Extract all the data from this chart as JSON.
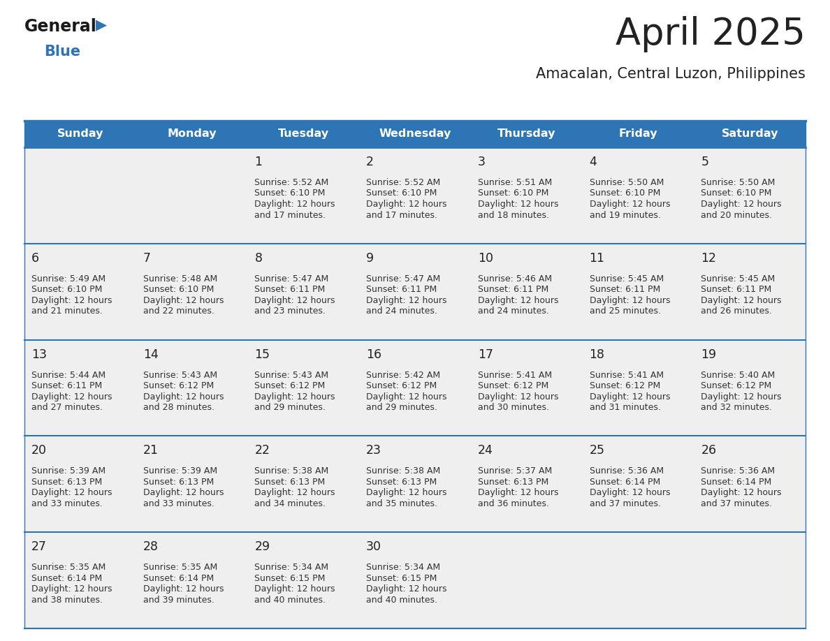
{
  "title": "April 2025",
  "subtitle": "Amacalan, Central Luzon, Philippines",
  "days_of_week": [
    "Sunday",
    "Monday",
    "Tuesday",
    "Wednesday",
    "Thursday",
    "Friday",
    "Saturday"
  ],
  "header_bg": "#2e75b6",
  "header_text": "#ffffff",
  "cell_bg": "#efefef",
  "cell_bg_empty": "#efefef",
  "border_color": "#2e75b6",
  "row_line_color": "#2e75b6",
  "title_color": "#222222",
  "subtitle_color": "#222222",
  "text_color": "#333333",
  "day_num_color": "#222222",
  "logo_general_color": "#1a1a1a",
  "logo_blue_color": "#2e75b6",
  "calendar_data": [
    [
      null,
      null,
      {
        "day": 1,
        "sunrise": "5:52 AM",
        "sunset": "6:10 PM",
        "daylight": "12 hours and 17 minutes."
      },
      {
        "day": 2,
        "sunrise": "5:52 AM",
        "sunset": "6:10 PM",
        "daylight": "12 hours and 17 minutes."
      },
      {
        "day": 3,
        "sunrise": "5:51 AM",
        "sunset": "6:10 PM",
        "daylight": "12 hours and 18 minutes."
      },
      {
        "day": 4,
        "sunrise": "5:50 AM",
        "sunset": "6:10 PM",
        "daylight": "12 hours and 19 minutes."
      },
      {
        "day": 5,
        "sunrise": "5:50 AM",
        "sunset": "6:10 PM",
        "daylight": "12 hours and 20 minutes."
      }
    ],
    [
      {
        "day": 6,
        "sunrise": "5:49 AM",
        "sunset": "6:10 PM",
        "daylight": "12 hours and 21 minutes."
      },
      {
        "day": 7,
        "sunrise": "5:48 AM",
        "sunset": "6:10 PM",
        "daylight": "12 hours and 22 minutes."
      },
      {
        "day": 8,
        "sunrise": "5:47 AM",
        "sunset": "6:11 PM",
        "daylight": "12 hours and 23 minutes."
      },
      {
        "day": 9,
        "sunrise": "5:47 AM",
        "sunset": "6:11 PM",
        "daylight": "12 hours and 24 minutes."
      },
      {
        "day": 10,
        "sunrise": "5:46 AM",
        "sunset": "6:11 PM",
        "daylight": "12 hours and 24 minutes."
      },
      {
        "day": 11,
        "sunrise": "5:45 AM",
        "sunset": "6:11 PM",
        "daylight": "12 hours and 25 minutes."
      },
      {
        "day": 12,
        "sunrise": "5:45 AM",
        "sunset": "6:11 PM",
        "daylight": "12 hours and 26 minutes."
      }
    ],
    [
      {
        "day": 13,
        "sunrise": "5:44 AM",
        "sunset": "6:11 PM",
        "daylight": "12 hours and 27 minutes."
      },
      {
        "day": 14,
        "sunrise": "5:43 AM",
        "sunset": "6:12 PM",
        "daylight": "12 hours and 28 minutes."
      },
      {
        "day": 15,
        "sunrise": "5:43 AM",
        "sunset": "6:12 PM",
        "daylight": "12 hours and 29 minutes."
      },
      {
        "day": 16,
        "sunrise": "5:42 AM",
        "sunset": "6:12 PM",
        "daylight": "12 hours and 29 minutes."
      },
      {
        "day": 17,
        "sunrise": "5:41 AM",
        "sunset": "6:12 PM",
        "daylight": "12 hours and 30 minutes."
      },
      {
        "day": 18,
        "sunrise": "5:41 AM",
        "sunset": "6:12 PM",
        "daylight": "12 hours and 31 minutes."
      },
      {
        "day": 19,
        "sunrise": "5:40 AM",
        "sunset": "6:12 PM",
        "daylight": "12 hours and 32 minutes."
      }
    ],
    [
      {
        "day": 20,
        "sunrise": "5:39 AM",
        "sunset": "6:13 PM",
        "daylight": "12 hours and 33 minutes."
      },
      {
        "day": 21,
        "sunrise": "5:39 AM",
        "sunset": "6:13 PM",
        "daylight": "12 hours and 33 minutes."
      },
      {
        "day": 22,
        "sunrise": "5:38 AM",
        "sunset": "6:13 PM",
        "daylight": "12 hours and 34 minutes."
      },
      {
        "day": 23,
        "sunrise": "5:38 AM",
        "sunset": "6:13 PM",
        "daylight": "12 hours and 35 minutes."
      },
      {
        "day": 24,
        "sunrise": "5:37 AM",
        "sunset": "6:13 PM",
        "daylight": "12 hours and 36 minutes."
      },
      {
        "day": 25,
        "sunrise": "5:36 AM",
        "sunset": "6:14 PM",
        "daylight": "12 hours and 37 minutes."
      },
      {
        "day": 26,
        "sunrise": "5:36 AM",
        "sunset": "6:14 PM",
        "daylight": "12 hours and 37 minutes."
      }
    ],
    [
      {
        "day": 27,
        "sunrise": "5:35 AM",
        "sunset": "6:14 PM",
        "daylight": "12 hours and 38 minutes."
      },
      {
        "day": 28,
        "sunrise": "5:35 AM",
        "sunset": "6:14 PM",
        "daylight": "12 hours and 39 minutes."
      },
      {
        "day": 29,
        "sunrise": "5:34 AM",
        "sunset": "6:15 PM",
        "daylight": "12 hours and 40 minutes."
      },
      {
        "day": 30,
        "sunrise": "5:34 AM",
        "sunset": "6:15 PM",
        "daylight": "12 hours and 40 minutes."
      },
      null,
      null,
      null
    ]
  ]
}
